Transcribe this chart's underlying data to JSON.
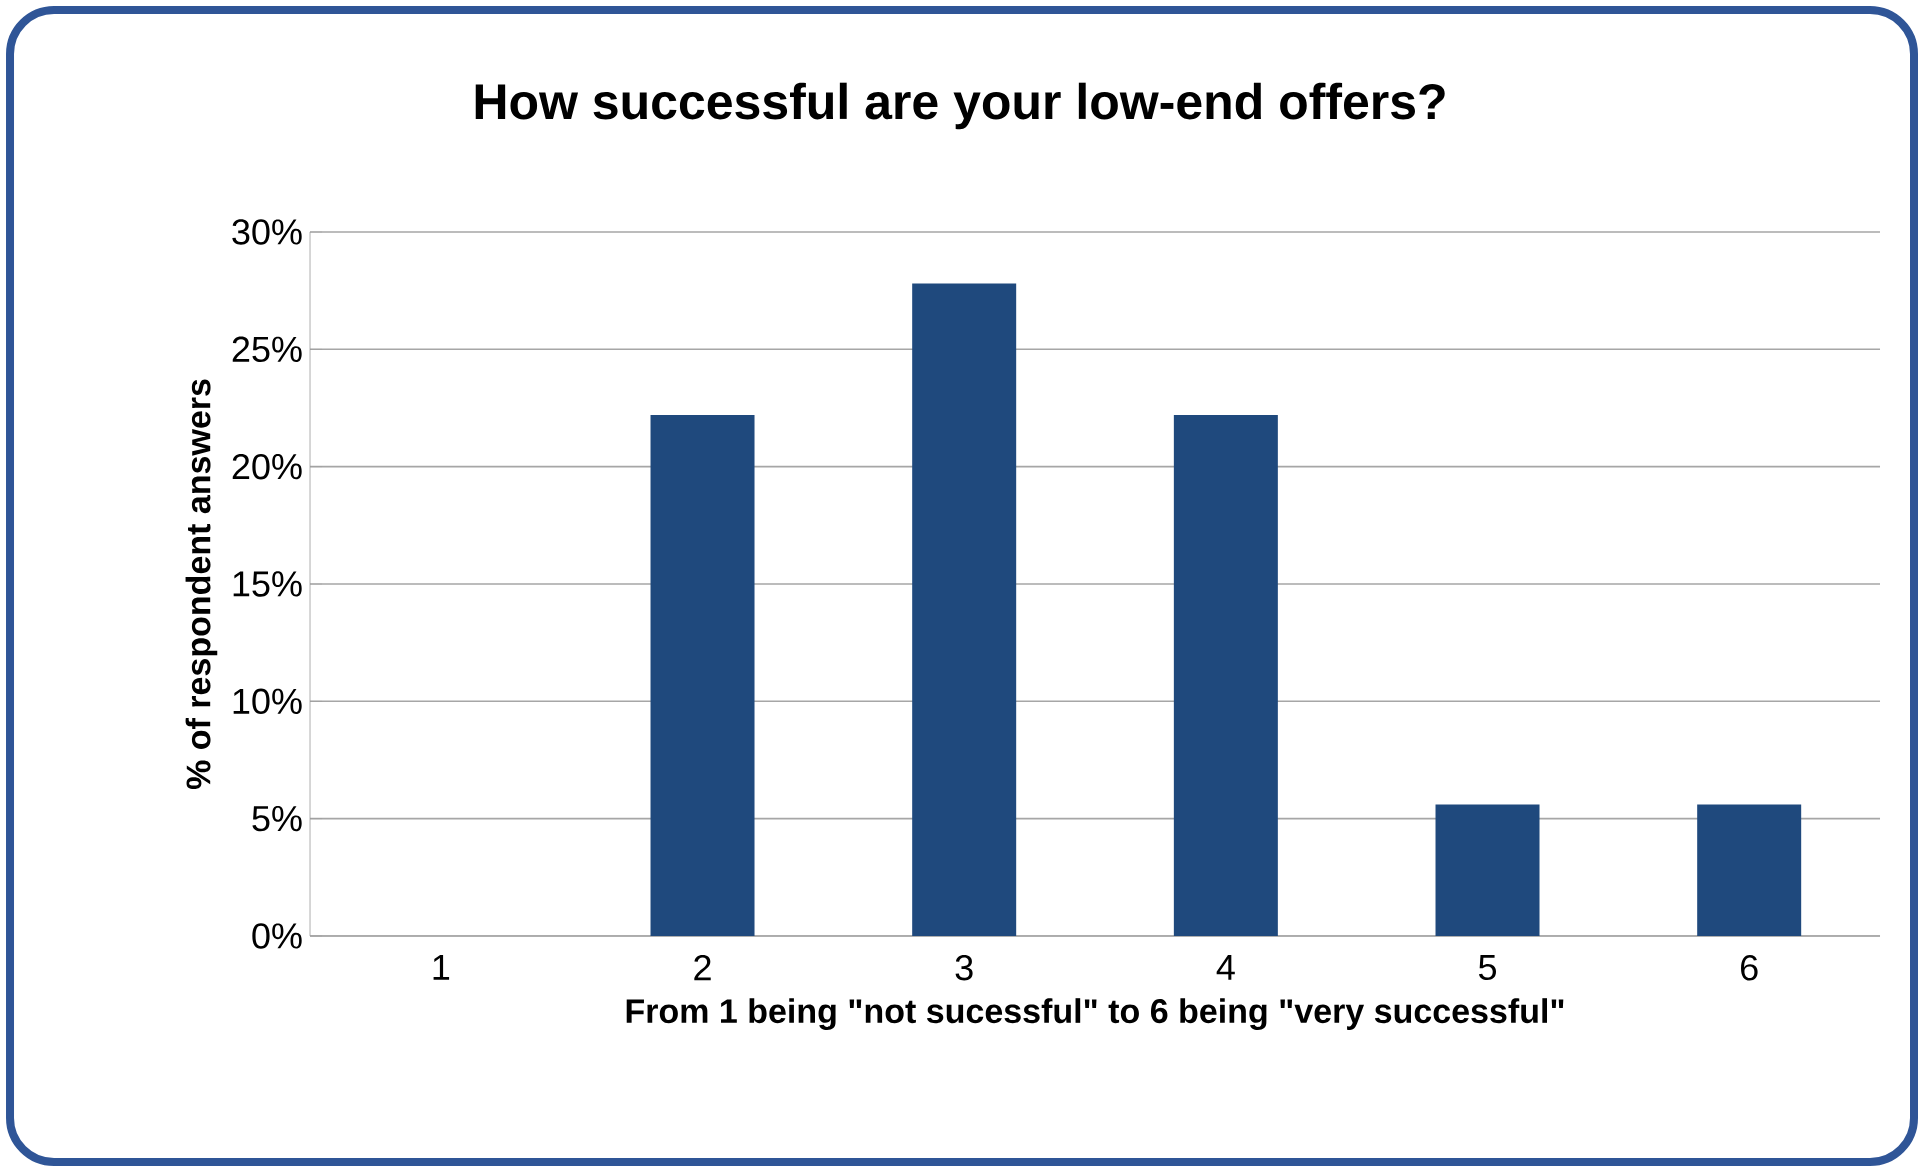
{
  "chart_data": {
    "type": "bar",
    "title": "How successful are your low-end offers?",
    "xlabel": "From 1 being \"not sucessful\" to 6 being \"very successful\"",
    "ylabel": "% of respondent answers",
    "categories": [
      "1",
      "2",
      "3",
      "4",
      "5",
      "6"
    ],
    "values": [
      0,
      22.2,
      27.8,
      22.2,
      5.6,
      5.6
    ],
    "color": "#1f497d",
    "ylim": [
      0,
      30
    ],
    "yticks": [
      {
        "value": 0,
        "label": "0%"
      },
      {
        "value": 5,
        "label": "5%"
      },
      {
        "value": 10,
        "label": "10%"
      },
      {
        "value": 15,
        "label": "15%"
      },
      {
        "value": 20,
        "label": "20%"
      },
      {
        "value": 25,
        "label": "25%"
      },
      {
        "value": 30,
        "label": "30%"
      }
    ],
    "grid": true
  }
}
